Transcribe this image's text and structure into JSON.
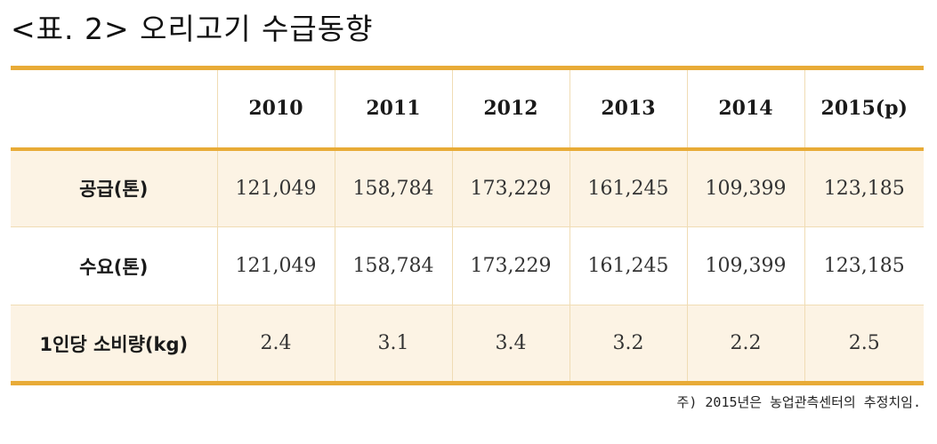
{
  "title": "<표. 2> 오리고기 수급동향",
  "table": {
    "corner": "",
    "years": [
      "2010",
      "2011",
      "2012",
      "2013",
      "2014",
      "2015(p)"
    ],
    "rows": [
      {
        "label": "공급(톤)",
        "values": [
          "121,049",
          "158,784",
          "173,229",
          "161,245",
          "109,399",
          "123,185"
        ]
      },
      {
        "label": "수요(톤)",
        "values": [
          "121,049",
          "158,784",
          "173,229",
          "161,245",
          "109,399",
          "123,185"
        ]
      },
      {
        "label": "1인당 소비량(kg)",
        "values": [
          "2.4",
          "3.1",
          "3.4",
          "3.2",
          "2.2",
          "2.5"
        ]
      }
    ]
  },
  "note": "주) 2015년은 농업관측센터의 추정치임.",
  "colors": {
    "accent": "#e8ab37",
    "row_shade": "#fcf3e4",
    "grid": "#f0dcb4"
  }
}
